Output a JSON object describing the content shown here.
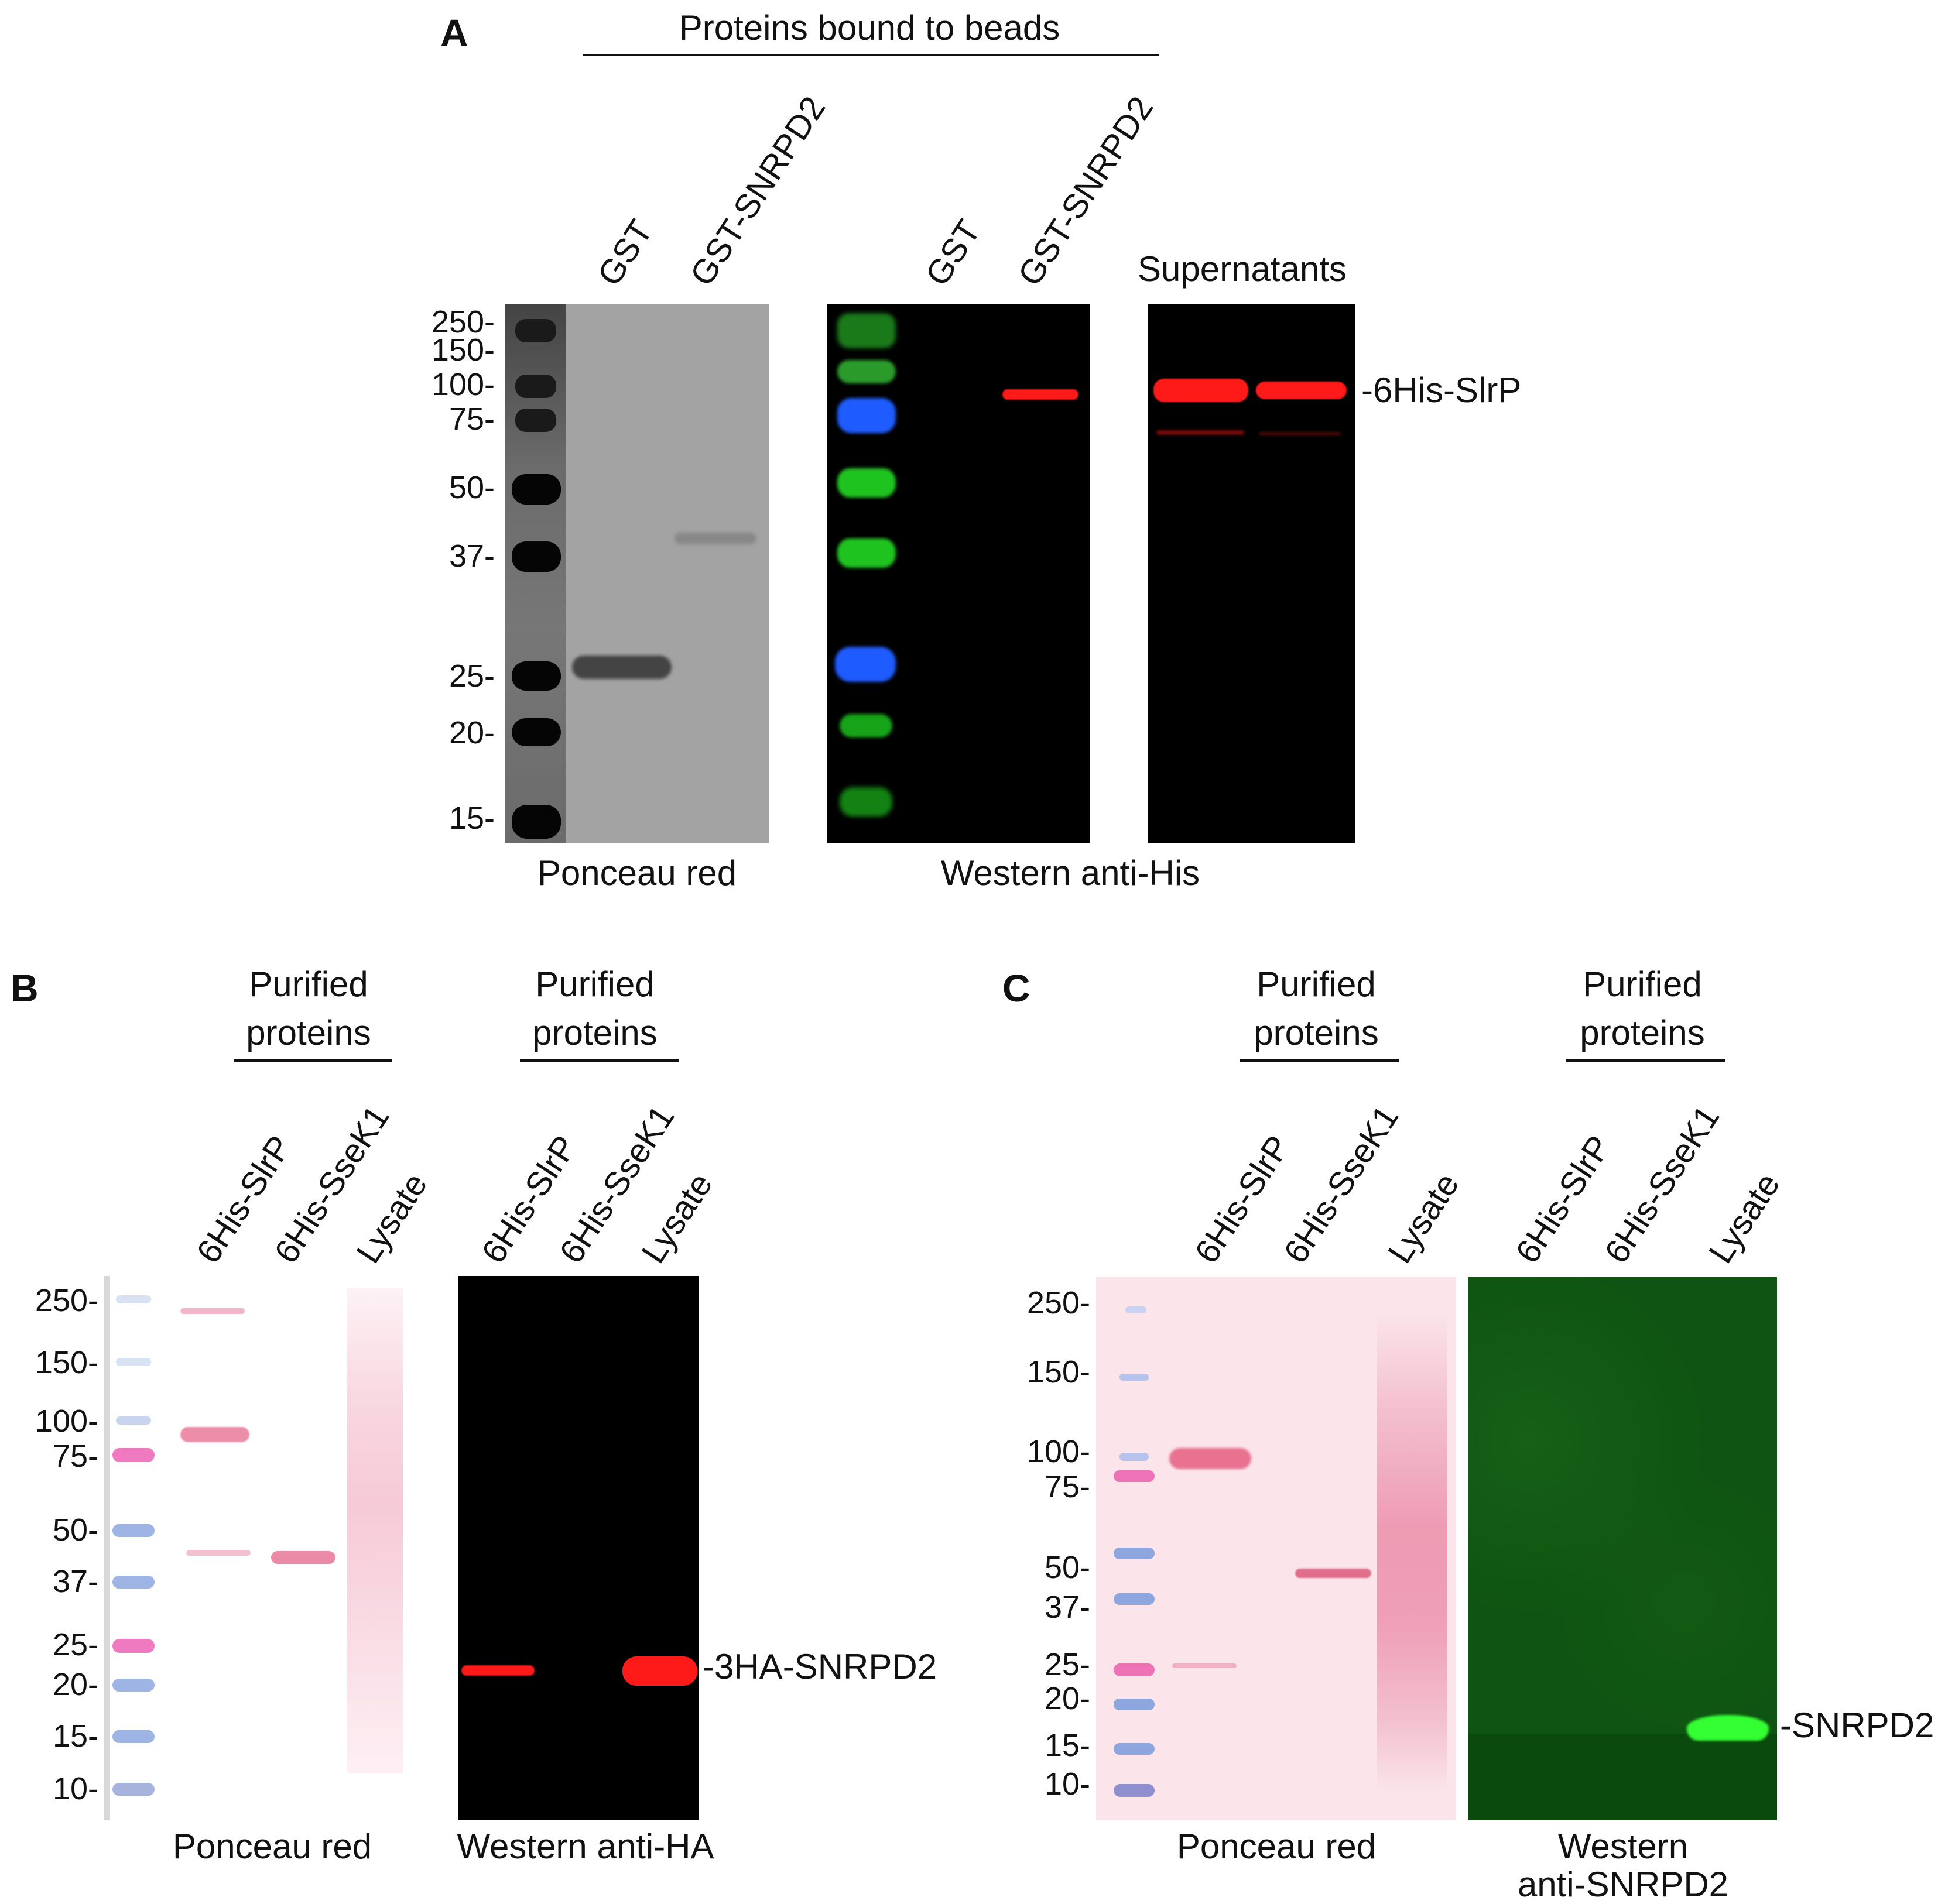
{
  "panels": {
    "A": {
      "letter": "A",
      "header": "Proteins bound to beads",
      "lanes_ponceau": [
        "GST",
        "GST-SNRPD2"
      ],
      "lanes_western": [
        "GST",
        "GST-SNRPD2"
      ],
      "supernatants": "Supernatants",
      "markers": [
        "250-",
        "150-",
        "100-",
        "75-",
        "50-",
        "37-",
        "25-",
        "20-",
        "15-"
      ],
      "band_label": "-6His-SlrP",
      "caption_ponceau": "Ponceau red",
      "caption_western": "Western anti-His"
    },
    "B": {
      "letter": "B",
      "group_header_1": "Purified",
      "group_header_2": "proteins",
      "lanes": [
        "6His-SlrP",
        "6His-SseK1",
        "Lysate"
      ],
      "markers": [
        "250-",
        "150-",
        "100-",
        "75-",
        "50-",
        "37-",
        "25-",
        "20-",
        "15-",
        "10-"
      ],
      "band_label": "-3HA-SNRPD2",
      "caption_ponceau": "Ponceau red",
      "caption_western": "Western anti-HA"
    },
    "C": {
      "letter": "C",
      "group_header_1": "Purified",
      "group_header_2": "proteins",
      "lanes": [
        "6His-SlrP",
        "6His-SseK1",
        "Lysate"
      ],
      "markers": [
        "250-",
        "150-",
        "100-",
        "75-",
        "50-",
        "37-",
        "25-",
        "20-",
        "15-",
        "10-"
      ],
      "band_label": "-SNRPD2",
      "caption_ponceau": "Ponceau red",
      "caption_western_1": "Western",
      "caption_western_2": "anti-SNRPD2"
    }
  },
  "colors": {
    "ponceau_gray_bg": "#9a9a9a",
    "western_bg": "#000000",
    "band_red": "#ff1a1a",
    "ladder_green": "#1fd11f",
    "ladder_blue": "#1f5cff",
    "pink_membrane": "#fbe3e8",
    "green_membrane": "#0f5a12",
    "snrpd2_band": "#33ff33"
  }
}
